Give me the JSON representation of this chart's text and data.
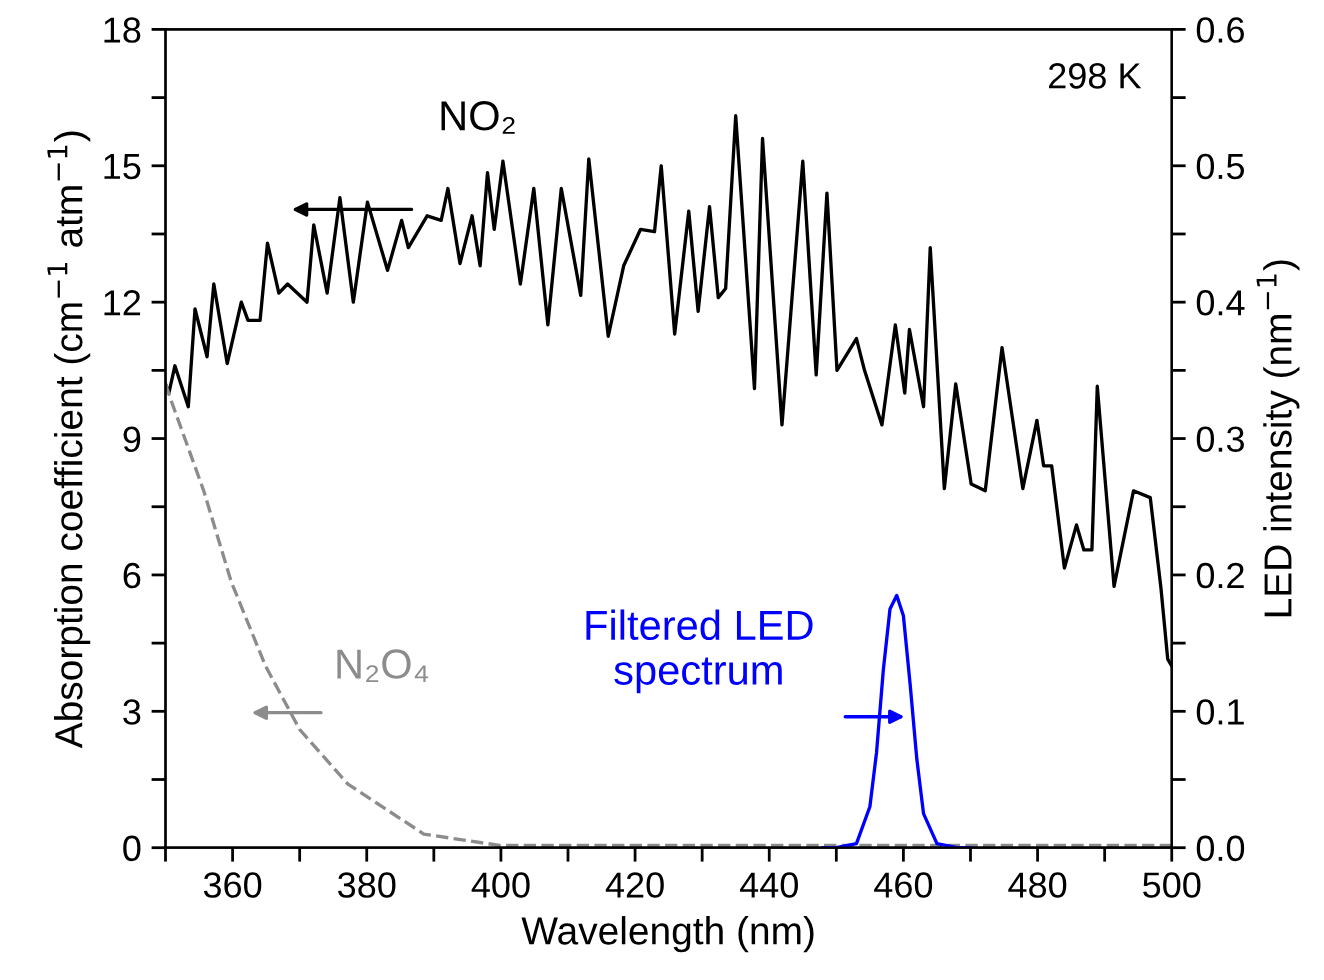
{
  "chart_data": {
    "type": "line",
    "xlabel": "Wavelength (nm)",
    "ylabel": "Absorption coefficient (cm$^{−1}$ atm$^{−1}$)",
    "y2label": "LED intensity (nm$^{−1}$)",
    "series": [
      {
        "name": "NO₂",
        "color": "#000000",
        "line_style": "solid",
        "x": [
          350,
          350.5,
          351.4,
          353.4,
          354.4,
          356.2,
          357.2,
          359.2,
          361.3,
          362.3,
          364.1,
          365.2,
          366.9,
          368.2,
          371.1,
          372.1,
          374.1,
          376.0,
          378.0,
          380.1,
          383.1,
          385.2,
          386.2,
          389.0,
          391.1,
          392.1,
          393.9,
          395.7,
          396.9,
          398.0,
          399.0,
          400.3,
          402.9,
          404.9,
          407.0,
          409.0,
          411.9,
          413.1,
          416.0,
          418.3,
          420.8,
          422.9,
          423.9,
          425.9,
          428.0,
          429.4,
          431.1,
          432.4,
          433.5,
          435.0,
          437.8,
          439.0,
          441.9,
          445.0,
          447.0,
          448.6,
          450.1,
          453.0,
          454.2,
          456.8,
          458.8,
          460.2,
          460.9,
          463.0,
          464.0,
          466.1,
          467.8,
          470.1,
          472.2,
          474.7,
          477.8,
          479.9,
          480.9,
          482.1,
          484.0,
          485.8,
          486.9,
          488.1,
          488.9,
          491.4,
          494.3,
          496.8,
          498.4,
          499.4,
          500
        ],
        "values": [
          10.2,
          10.0,
          10.6,
          9.7,
          11.85,
          10.8,
          12.4,
          10.65,
          12.0,
          11.6,
          11.6,
          13.3,
          12.2,
          12.4,
          12.0,
          13.7,
          12.2,
          14.3,
          12.0,
          14.2,
          12.7,
          13.8,
          13.2,
          13.9,
          13.8,
          14.5,
          12.85,
          13.9,
          12.8,
          14.85,
          13.6,
          15.1,
          12.4,
          14.5,
          11.5,
          14.5,
          12.15,
          15.15,
          11.25,
          12.8,
          13.6,
          13.55,
          15.0,
          11.3,
          14.0,
          11.8,
          14.1,
          12.1,
          12.3,
          16.1,
          10.1,
          15.6,
          9.3,
          15.1,
          10.4,
          14.4,
          10.5,
          11.2,
          10.5,
          9.3,
          11.5,
          10.0,
          11.4,
          9.7,
          13.2,
          7.9,
          10.2,
          8.0,
          7.85,
          11.0,
          7.9,
          9.4,
          8.4,
          8.4,
          6.15,
          7.1,
          6.55,
          6.55,
          10.15,
          5.75,
          7.85,
          7.7,
          5.7,
          4.15,
          4.0
        ]
      },
      {
        "name": "N₂O₄",
        "color": "#8c8c8c",
        "line_style": "dashed",
        "x": [
          350,
          351.0,
          355.7,
          359.8,
          364.9,
          370.0,
          377.2,
          388.5,
          399.8,
          420,
          440,
          460,
          480,
          500
        ],
        "values": [
          10.2,
          9.77,
          7.85,
          5.85,
          4.0,
          2.6,
          1.4,
          0.3,
          0.05,
          0.05,
          0.05,
          0.05,
          0.05,
          0.05
        ]
      },
      {
        "name": "Filtered LED\nspectrum",
        "color": "#0000ff",
        "line_style": "solid",
        "axis": "y2",
        "x": [
          448,
          450,
          453,
          455,
          456,
          457,
          458,
          459,
          460,
          461,
          462,
          463,
          465,
          468,
          470
        ],
        "values": [
          0,
          0,
          0.003,
          0.03,
          0.07,
          0.13,
          0.175,
          0.185,
          0.17,
          0.12,
          0.065,
          0.025,
          0.003,
          0,
          0
        ]
      }
    ],
    "annotations": [
      "298 K"
    ],
    "xlim": [
      350,
      500
    ],
    "ylim": [
      0,
      18
    ],
    "y2lim": [
      0,
      0.6
    ],
    "xticks": [
      {
        "value": 350,
        "label": null
      },
      360,
      {
        "value": 370,
        "label": null
      },
      380,
      {
        "value": 390,
        "label": null
      },
      400,
      {
        "value": 410,
        "label": null
      },
      420,
      {
        "value": 430,
        "label": null
      },
      440,
      {
        "value": 450,
        "label": null
      },
      460,
      {
        "value": 470,
        "label": null
      },
      480,
      {
        "value": 490,
        "label": null
      },
      500
    ],
    "yticks": [
      0,
      {
        "value": 1.5,
        "label": null
      },
      3,
      {
        "value": 4.5,
        "label": null
      },
      6,
      {
        "value": 7.5,
        "label": null
      },
      9,
      {
        "value": 10.5,
        "label": null
      },
      12,
      {
        "value": 13.5,
        "label": null
      },
      15,
      {
        "value": 16.5,
        "label": null
      },
      18
    ],
    "y2ticks": [
      {
        "value": 0,
        "label": "0.0"
      },
      {
        "value": 0.05,
        "label": null
      },
      0.1,
      {
        "value": 0.15,
        "label": null
      },
      0.2,
      {
        "value": 0.25,
        "label": null
      },
      0.3,
      {
        "value": 0.35,
        "label": null
      },
      0.4,
      {
        "value": 0.45,
        "label": null
      },
      0.5,
      {
        "value": 0.55,
        "label": null
      },
      0.6
    ],
    "grid": false,
    "legend": false
  }
}
